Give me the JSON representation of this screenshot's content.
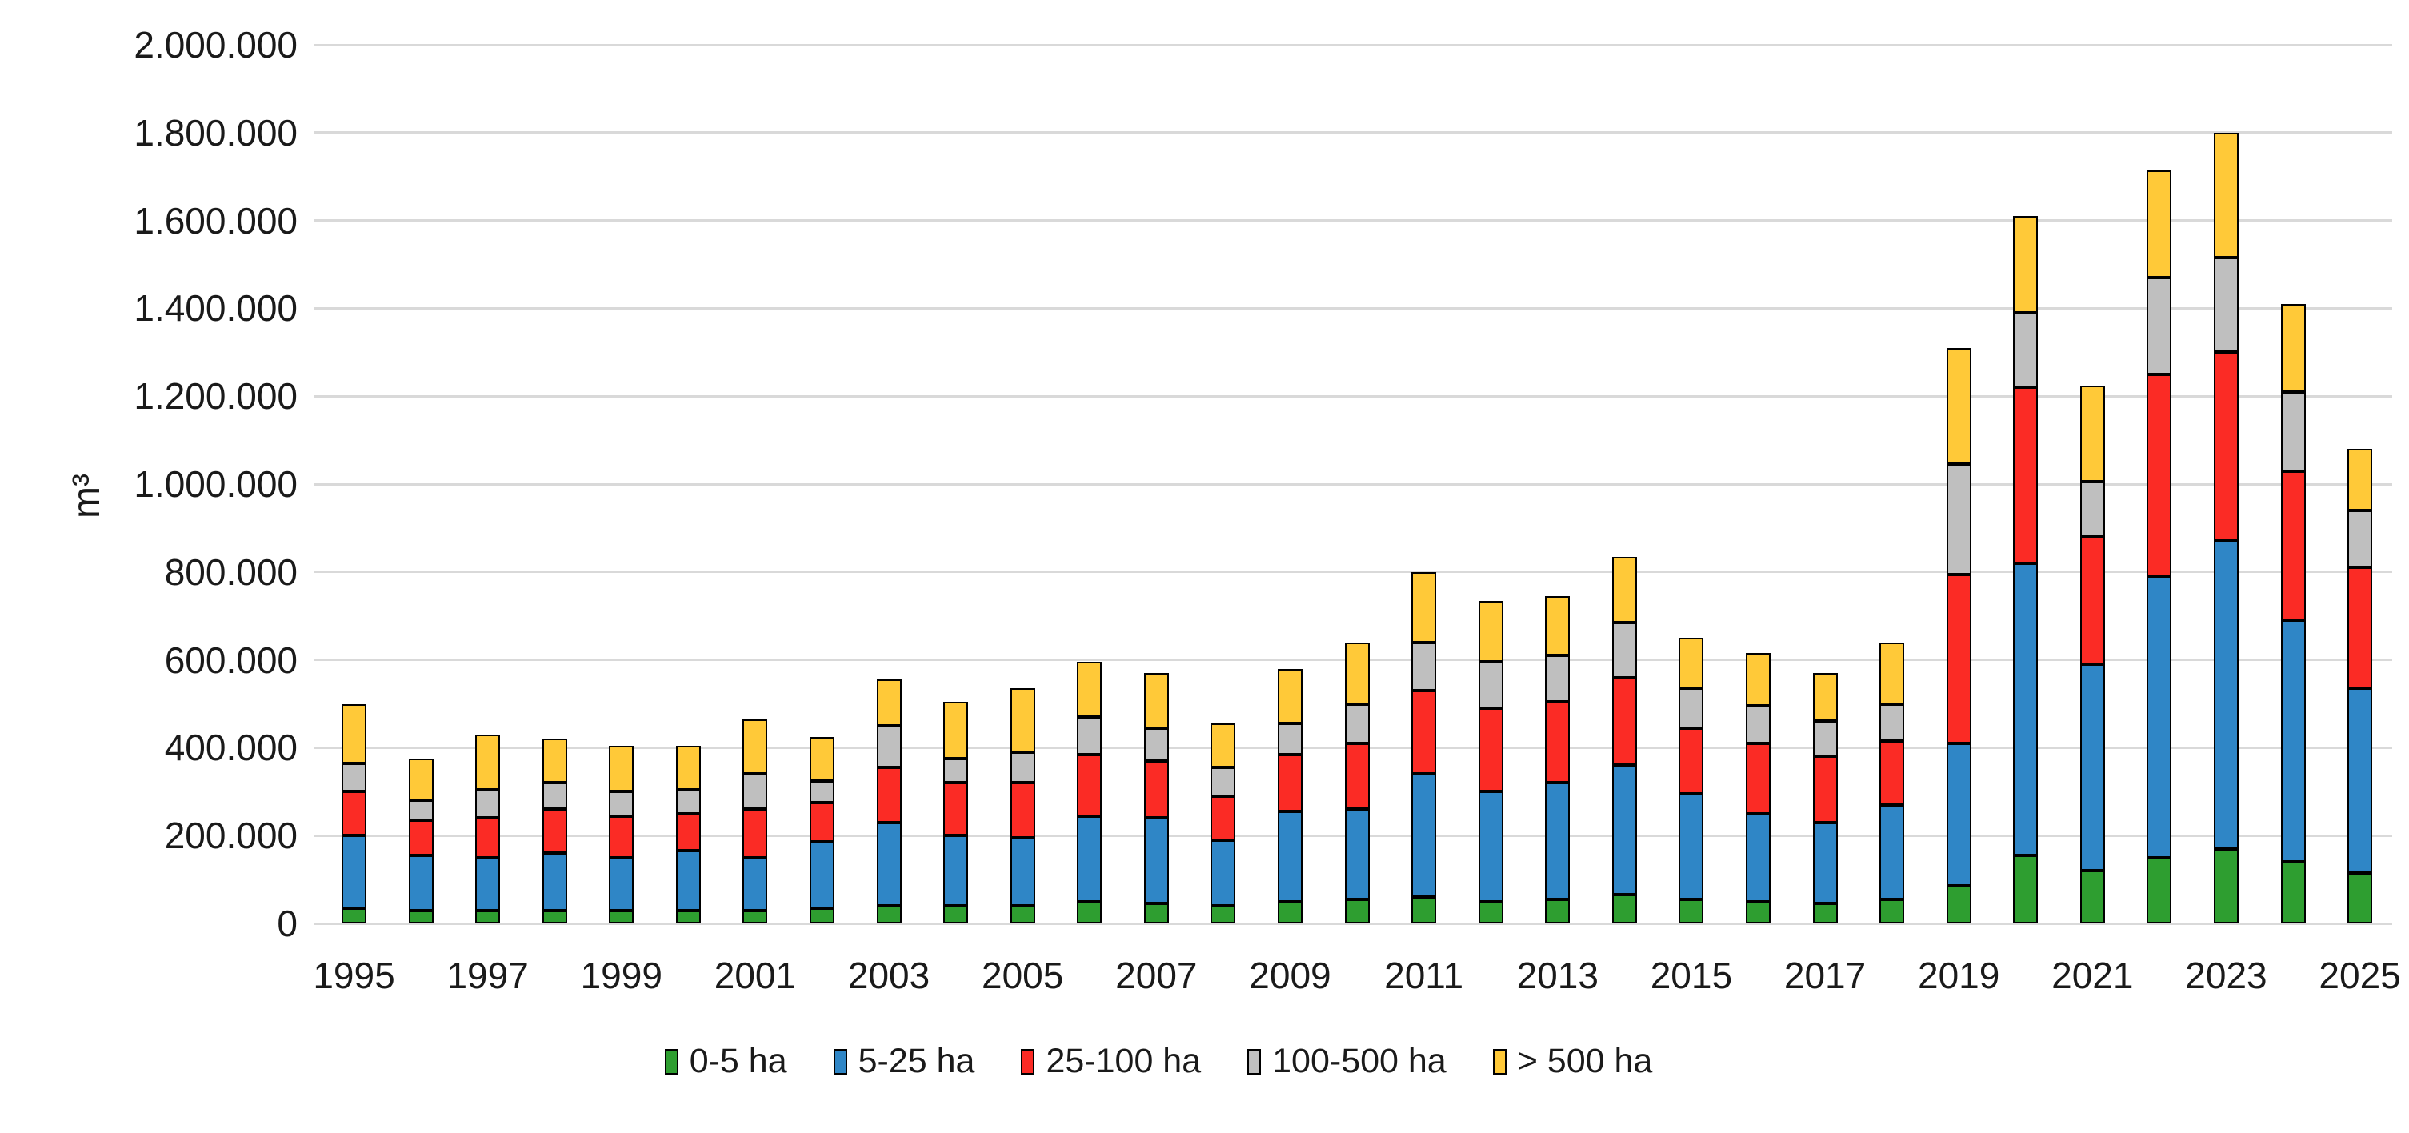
{
  "chart_data": {
    "type": "bar",
    "stacked": true,
    "title": "",
    "xlabel": "",
    "ylabel": "m³",
    "ymin": 0,
    "ymax": 2000000,
    "ytick_step": 200000,
    "ytick_labels": [
      "0",
      "200.000",
      "400.000",
      "600.000",
      "800.000",
      "1.000.000",
      "1.200.000",
      "1.400.000",
      "1.600.000",
      "1.800.000",
      "2.000.000"
    ],
    "grid": true,
    "gridline_color": "#D9D9D9",
    "bar_border_color": "#000000",
    "legend_position": "bottom",
    "categories": [
      1995,
      1996,
      1997,
      1998,
      1999,
      2000,
      2001,
      2002,
      2003,
      2004,
      2005,
      2006,
      2007,
      2008,
      2009,
      2010,
      2011,
      2012,
      2013,
      2014,
      2015,
      2016,
      2017,
      2018,
      2019,
      2020,
      2021,
      2022,
      2023,
      2024,
      2025
    ],
    "xtick_labels": [
      "1995",
      "1997",
      "1999",
      "2001",
      "2003",
      "2005",
      "2007",
      "2009",
      "2011",
      "2013",
      "2015",
      "2017",
      "2019",
      "2021",
      "2023",
      "2025"
    ],
    "series": [
      {
        "name": "0-5 ha",
        "color": "#2E9E30",
        "values": [
          35000,
          30000,
          30000,
          30000,
          30000,
          30000,
          30000,
          35000,
          40000,
          40000,
          40000,
          50000,
          45000,
          40000,
          50000,
          55000,
          60000,
          50000,
          55000,
          65000,
          55000,
          50000,
          45000,
          55000,
          85000,
          155000,
          120000,
          150000,
          170000,
          140000,
          115000
        ]
      },
      {
        "name": "5-25 ha",
        "color": "#2F86C6",
        "values": [
          165000,
          125000,
          120000,
          130000,
          120000,
          135000,
          120000,
          150000,
          190000,
          160000,
          155000,
          195000,
          195000,
          150000,
          205000,
          205000,
          280000,
          250000,
          265000,
          295000,
          240000,
          200000,
          185000,
          215000,
          325000,
          665000,
          470000,
          640000,
          700000,
          550000,
          420000
        ]
      },
      {
        "name": "25-100 ha",
        "color": "#FB2B25",
        "values": [
          100000,
          80000,
          90000,
          100000,
          95000,
          85000,
          110000,
          90000,
          125000,
          120000,
          125000,
          140000,
          130000,
          100000,
          130000,
          150000,
          190000,
          190000,
          185000,
          200000,
          150000,
          160000,
          150000,
          145000,
          385000,
          400000,
          290000,
          460000,
          430000,
          340000,
          275000
        ]
      },
      {
        "name": "100-500 ha",
        "color": "#BFBFBF",
        "values": [
          65000,
          45000,
          65000,
          60000,
          55000,
          55000,
          80000,
          50000,
          95000,
          55000,
          70000,
          85000,
          75000,
          65000,
          70000,
          90000,
          110000,
          105000,
          105000,
          125000,
          90000,
          85000,
          80000,
          85000,
          250000,
          170000,
          125000,
          220000,
          215000,
          180000,
          130000
        ]
      },
      {
        "name": "> 500 ha",
        "color": "#FFC938",
        "values": [
          135000,
          95000,
          125000,
          100000,
          105000,
          100000,
          125000,
          100000,
          105000,
          130000,
          145000,
          125000,
          125000,
          100000,
          125000,
          140000,
          160000,
          140000,
          135000,
          150000,
          115000,
          120000,
          110000,
          140000,
          265000,
          220000,
          220000,
          245000,
          285000,
          200000,
          140000
        ]
      }
    ]
  }
}
